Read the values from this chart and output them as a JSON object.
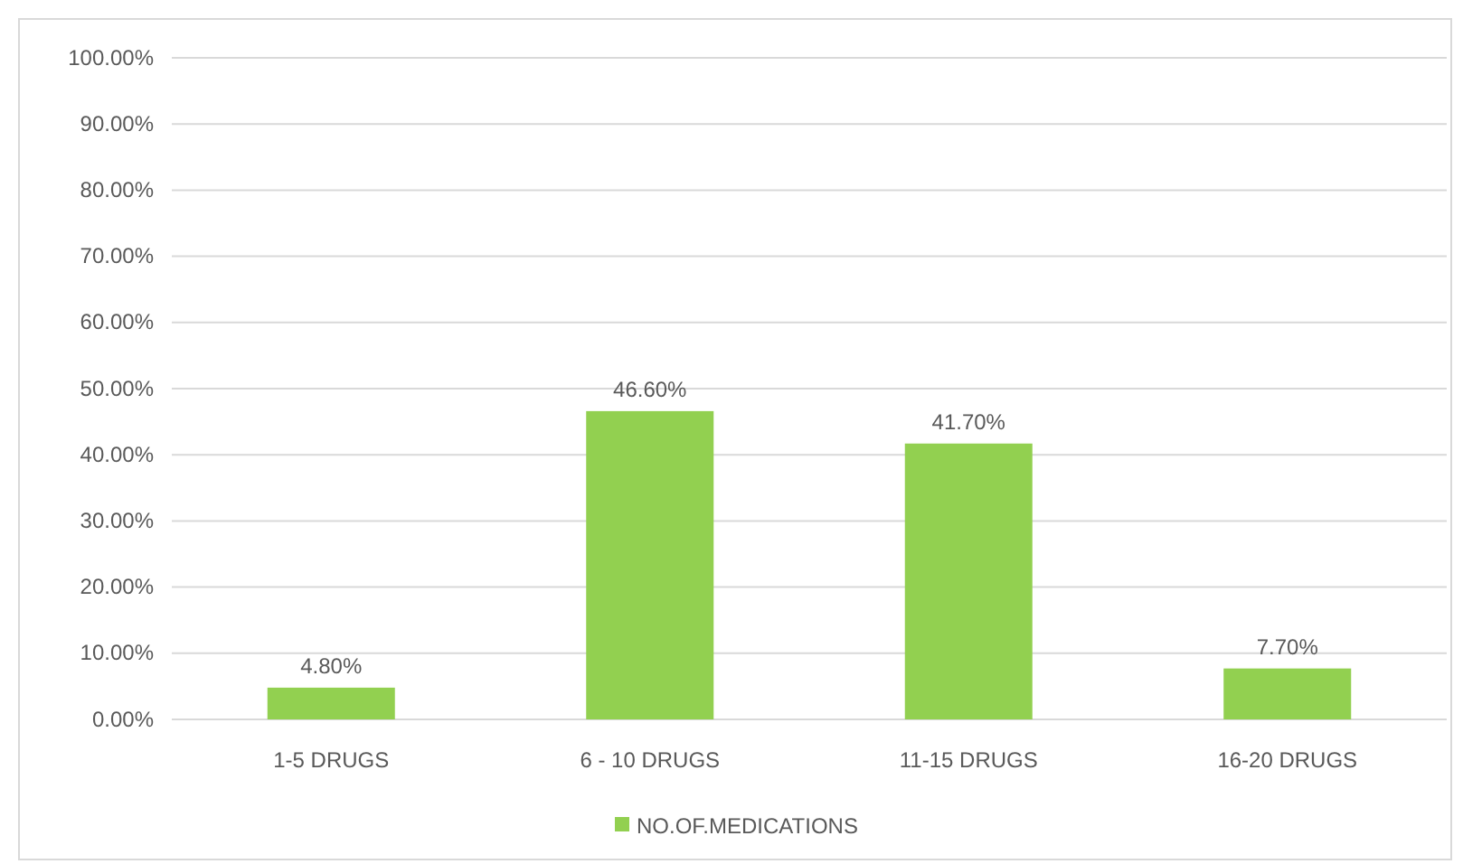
{
  "chart_data": {
    "type": "bar",
    "categories": [
      "1-5 DRUGS",
      "6 - 10 DRUGS",
      "11-15 DRUGS",
      "16-20 DRUGS"
    ],
    "series": [
      {
        "name": "NO.OF.MEDICATIONS",
        "color": "#92d050",
        "values": [
          4.8,
          46.6,
          41.7,
          7.7
        ],
        "value_labels": [
          "4.80%",
          "46.60%",
          "41.70%",
          "7.70%"
        ]
      }
    ],
    "ylim": [
      0,
      100
    ],
    "yticks": [
      {
        "value": 0,
        "label": "0.00%"
      },
      {
        "value": 10,
        "label": "10.00%"
      },
      {
        "value": 20,
        "label": "20.00%"
      },
      {
        "value": 30,
        "label": "30.00%"
      },
      {
        "value": 40,
        "label": "40.00%"
      },
      {
        "value": 50,
        "label": "50.00%"
      },
      {
        "value": 60,
        "label": "60.00%"
      },
      {
        "value": 70,
        "label": "70.00%"
      },
      {
        "value": 80,
        "label": "80.00%"
      },
      {
        "value": 90,
        "label": "90.00%"
      },
      {
        "value": 100,
        "label": "100.00%"
      }
    ],
    "grid": "y",
    "legend": "bottom"
  }
}
